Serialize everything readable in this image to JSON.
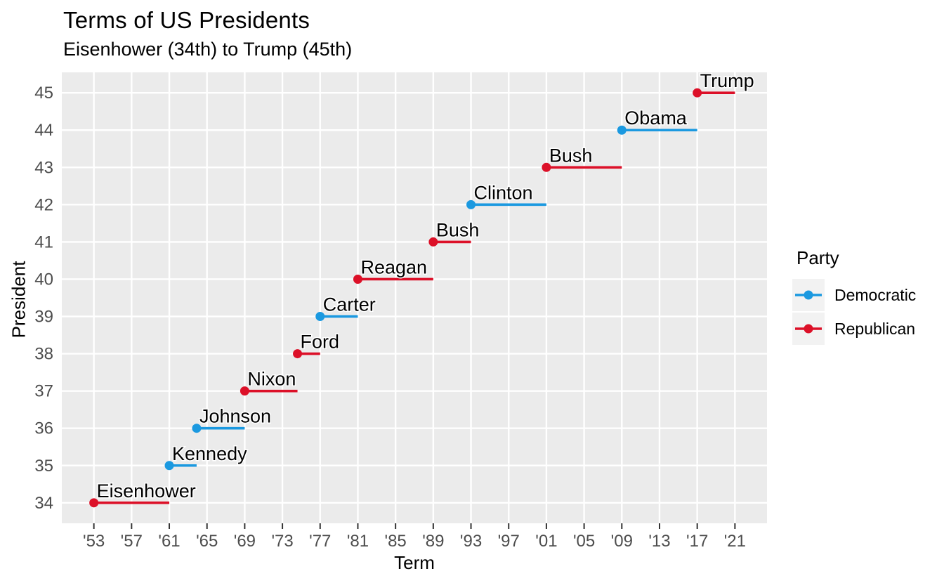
{
  "figure": {
    "background": "#FFFFFF"
  },
  "chart_data": {
    "type": "segment",
    "title": "Terms of US Presidents",
    "subtitle": "Eisenhower (34th) to Trump (45th)",
    "xlabel": "Term",
    "ylabel": "President",
    "xlim": [
      1949.6,
      2024.4
    ],
    "ylim": [
      33.45,
      45.55
    ],
    "x_ticks": [
      1953,
      1957,
      1961,
      1965,
      1969,
      1973,
      1977,
      1981,
      1985,
      1989,
      1993,
      1997,
      2001,
      2005,
      2009,
      2013,
      2017,
      2021
    ],
    "x_tick_labels": [
      "'53",
      "'57",
      "'61",
      "'65",
      "'69",
      "'73",
      "'77",
      "'81",
      "'85",
      "'89",
      "'93",
      "'97",
      "'01",
      "'05",
      "'09",
      "'13",
      "'17",
      "'21"
    ],
    "y_ticks": [
      34,
      35,
      36,
      37,
      38,
      39,
      40,
      41,
      42,
      43,
      44,
      45
    ],
    "grid": {
      "color": "#FFFFFF",
      "panel_background": "#EBEBEB",
      "minor_gridlines": false,
      "major_gridlines": true
    },
    "presidents": [
      {
        "number": 34,
        "name": "Eisenhower",
        "party": "Republican",
        "term_start": 1953,
        "term_end": 1961
      },
      {
        "number": 35,
        "name": "Kennedy",
        "party": "Democratic",
        "term_start": 1961,
        "term_end": 1963.9
      },
      {
        "number": 36,
        "name": "Johnson",
        "party": "Democratic",
        "term_start": 1963.9,
        "term_end": 1969
      },
      {
        "number": 37,
        "name": "Nixon",
        "party": "Republican",
        "term_start": 1969,
        "term_end": 1974.6
      },
      {
        "number": 38,
        "name": "Ford",
        "party": "Republican",
        "term_start": 1974.6,
        "term_end": 1977
      },
      {
        "number": 39,
        "name": "Carter",
        "party": "Democratic",
        "term_start": 1977,
        "term_end": 1981
      },
      {
        "number": 40,
        "name": "Reagan",
        "party": "Republican",
        "term_start": 1981,
        "term_end": 1989
      },
      {
        "number": 41,
        "name": "Bush",
        "party": "Republican",
        "term_start": 1989,
        "term_end": 1993
      },
      {
        "number": 42,
        "name": "Clinton",
        "party": "Democratic",
        "term_start": 1993,
        "term_end": 2001
      },
      {
        "number": 43,
        "name": "Bush",
        "party": "Republican",
        "term_start": 2001,
        "term_end": 2009
      },
      {
        "number": 44,
        "name": "Obama",
        "party": "Democratic",
        "term_start": 2009,
        "term_end": 2017
      },
      {
        "number": 45,
        "name": "Trump",
        "party": "Republican",
        "term_start": 2017,
        "term_end": 2021
      }
    ],
    "party_colors": {
      "Democratic": "#1B99E0",
      "Republican": "#DC1028"
    }
  },
  "legend": {
    "title": "Party",
    "key_background": "#F2F2F2",
    "items": [
      {
        "label": "Democratic",
        "color": "#1B99E0"
      },
      {
        "label": "Republican",
        "color": "#DC1028"
      }
    ]
  },
  "axis": {
    "tick_color": "#333333",
    "tick_label_color": "#4D4D4D"
  }
}
